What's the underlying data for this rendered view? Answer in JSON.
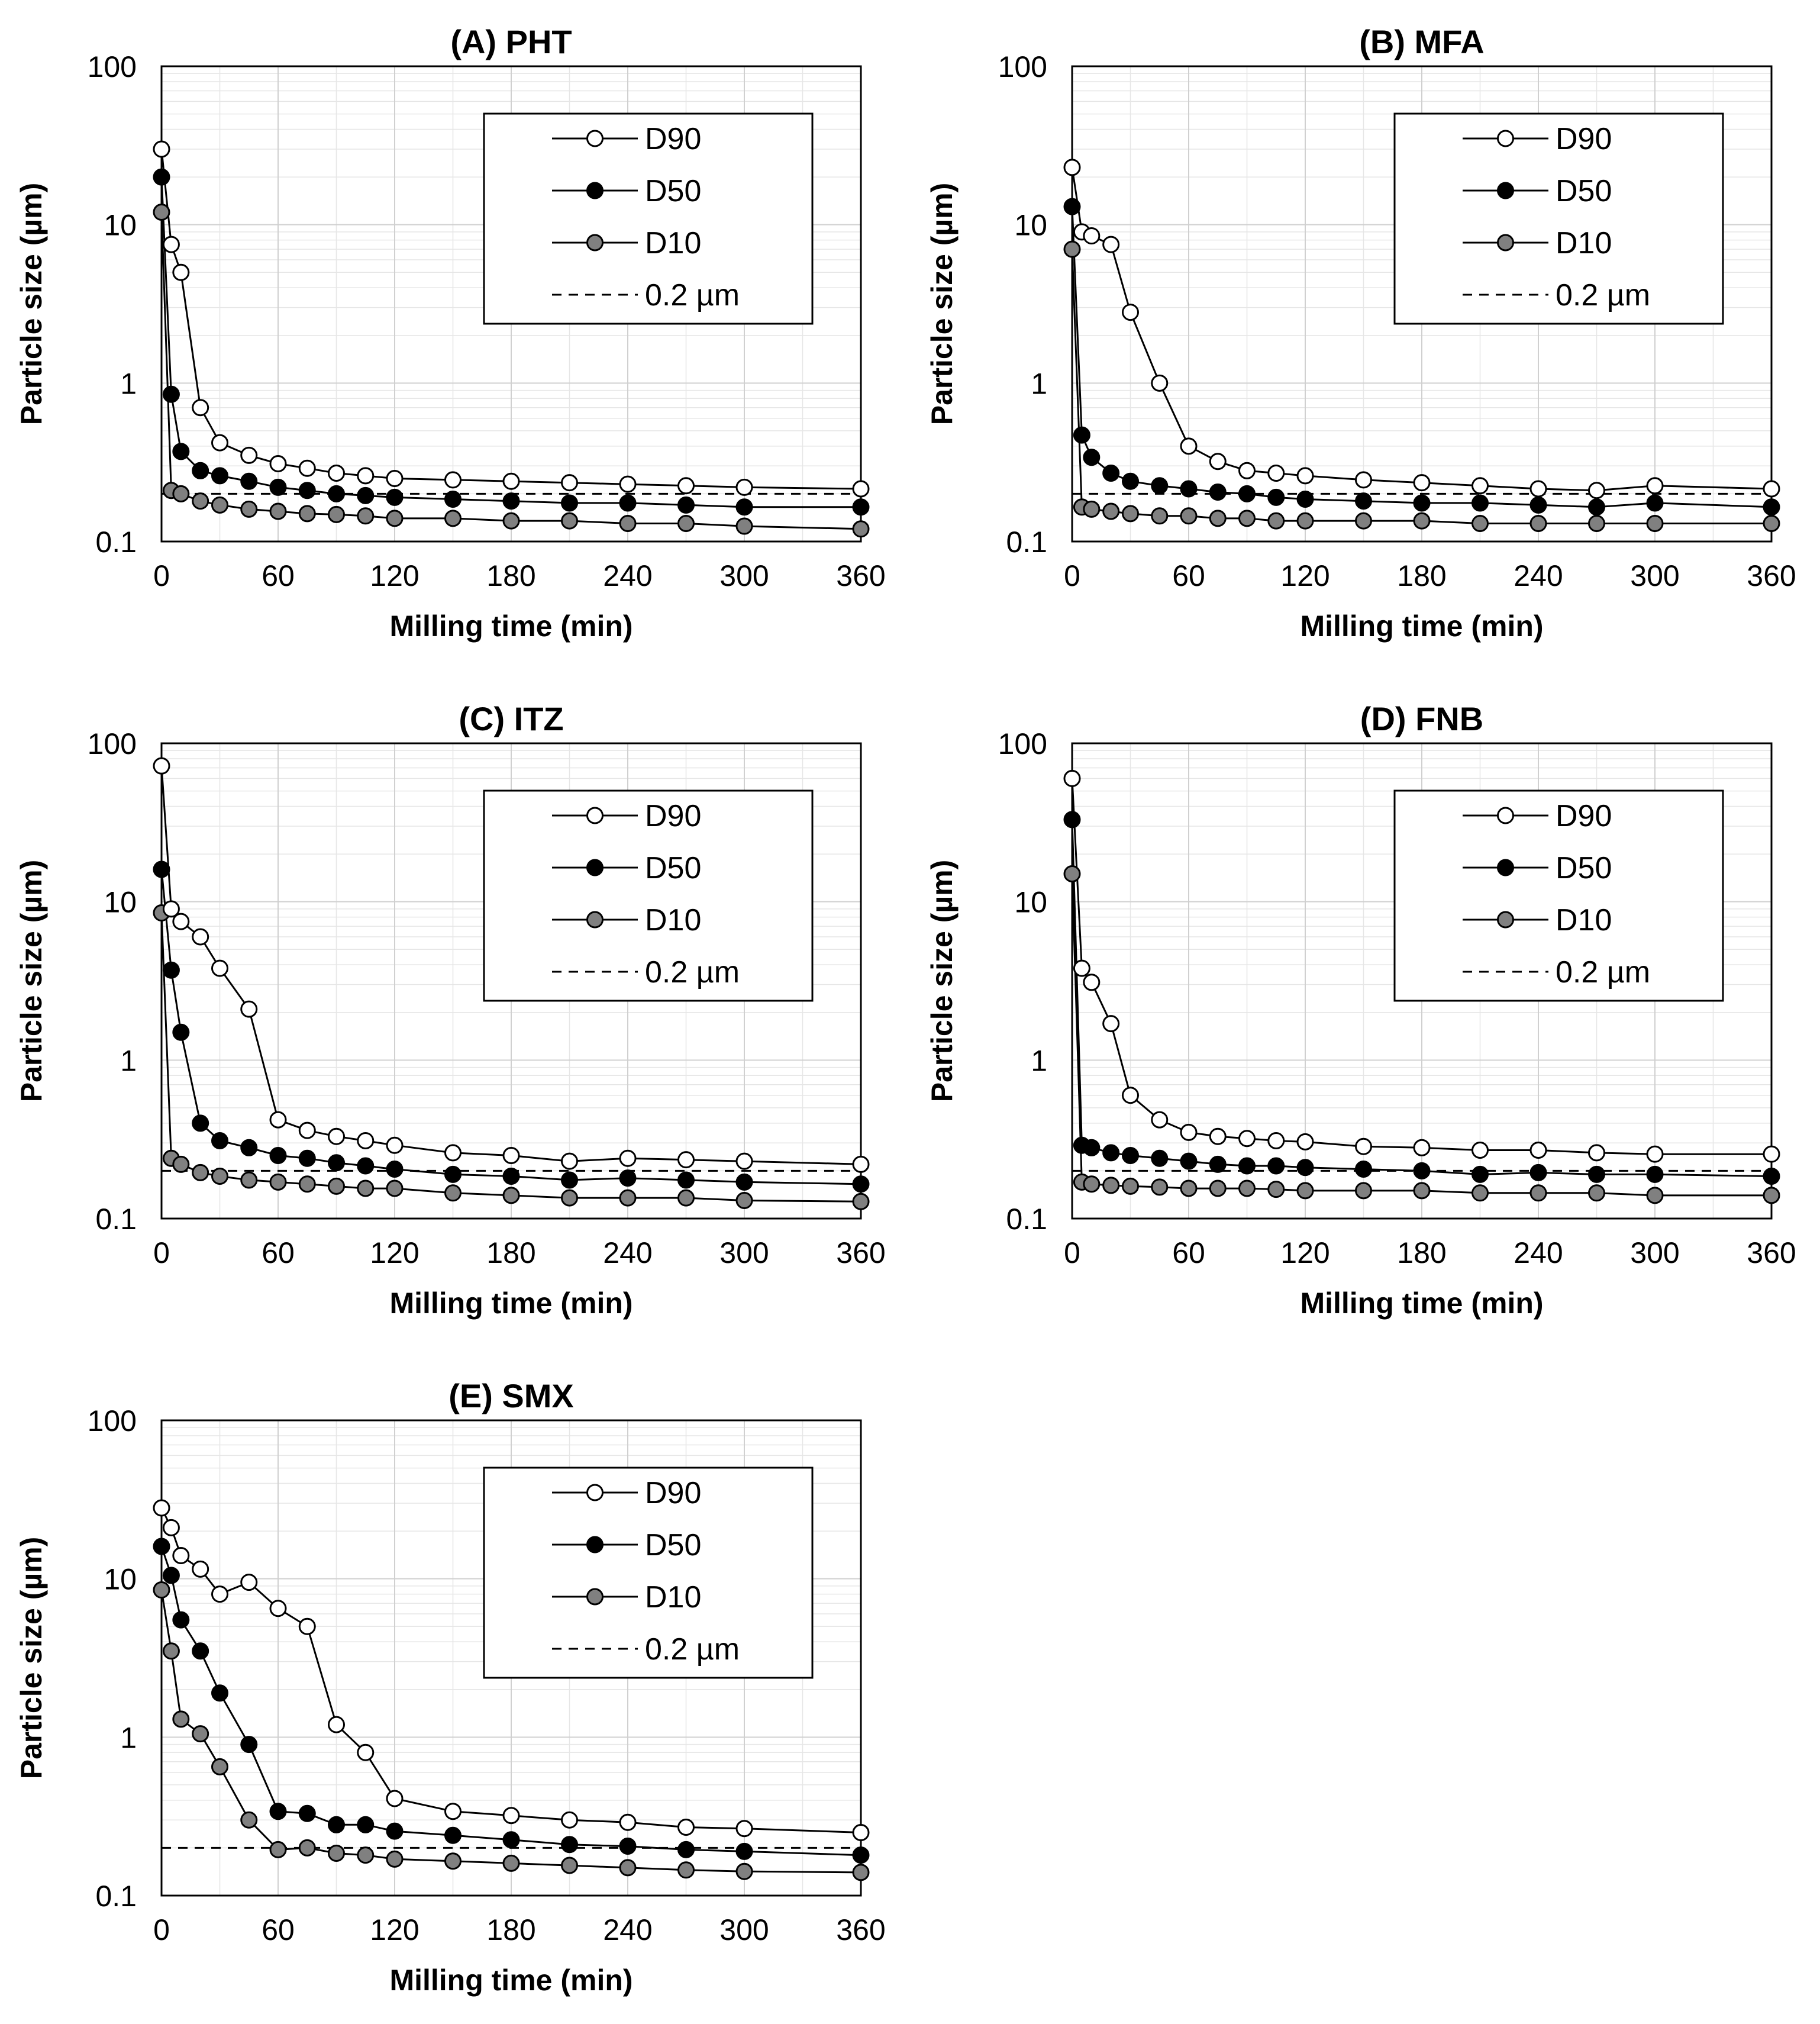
{
  "figure": {
    "legend_labels": [
      "D90",
      "D50",
      "D10",
      "0.2 µm"
    ],
    "xlabel": "Milling time (min)",
    "ylabel": "Particle size (µm)"
  },
  "colors": {
    "D90_fill": "#ffffff",
    "D50_fill": "#000000",
    "D10_fill": "#808080",
    "marker_stroke": "#000000"
  },
  "chart_data": [
    {
      "type": "line",
      "title": "(A) PHT",
      "xlabel": "Milling time (min)",
      "ylabel": "Particle size (µm)",
      "xlim": [
        0,
        360
      ],
      "xticks": [
        0,
        60,
        120,
        180,
        240,
        300,
        360
      ],
      "ylim": [
        0.1,
        100
      ],
      "yscale": "log",
      "yticks": [
        100,
        10,
        1,
        0.1
      ],
      "ytick_labels": [
        "100",
        "10",
        "1",
        "0.1"
      ],
      "legend_position": "top-right",
      "reference_line": {
        "label": "0.2 µm",
        "y": 0.2
      },
      "x": [
        0,
        5,
        10,
        20,
        30,
        45,
        60,
        75,
        90,
        105,
        120,
        150,
        180,
        210,
        240,
        270,
        300,
        360
      ],
      "series": [
        {
          "name": "D90",
          "values": [
            30,
            7.5,
            5,
            0.7,
            0.42,
            0.35,
            0.31,
            0.29,
            0.27,
            0.26,
            0.25,
            0.245,
            0.24,
            0.235,
            0.23,
            0.225,
            0.22,
            0.215
          ]
        },
        {
          "name": "D50",
          "values": [
            20,
            0.85,
            0.37,
            0.28,
            0.26,
            0.24,
            0.22,
            0.21,
            0.2,
            0.195,
            0.19,
            0.185,
            0.18,
            0.175,
            0.175,
            0.17,
            0.165,
            0.165
          ]
        },
        {
          "name": "D10",
          "values": [
            12,
            0.21,
            0.2,
            0.18,
            0.17,
            0.16,
            0.155,
            0.15,
            0.148,
            0.145,
            0.14,
            0.14,
            0.135,
            0.135,
            0.13,
            0.13,
            0.125,
            0.12
          ]
        }
      ]
    },
    {
      "type": "line",
      "title": "(B) MFA",
      "xlabel": "Milling time (min)",
      "ylabel": "Particle size (µm)",
      "xlim": [
        0,
        360
      ],
      "xticks": [
        0,
        60,
        120,
        180,
        240,
        300,
        360
      ],
      "ylim": [
        0.1,
        100
      ],
      "yscale": "log",
      "yticks": [
        100,
        10,
        1,
        0.1
      ],
      "ytick_labels": [
        "100",
        "10",
        "1",
        "0.1"
      ],
      "legend_position": "top-right",
      "reference_line": {
        "label": "0.2 µm",
        "y": 0.2
      },
      "x": [
        0,
        5,
        10,
        20,
        30,
        45,
        60,
        75,
        90,
        105,
        120,
        150,
        180,
        210,
        240,
        270,
        300,
        360
      ],
      "series": [
        {
          "name": "D90",
          "values": [
            23,
            9,
            8.5,
            7.5,
            2.8,
            1.0,
            0.4,
            0.32,
            0.28,
            0.27,
            0.26,
            0.245,
            0.235,
            0.225,
            0.215,
            0.21,
            0.225,
            0.215
          ]
        },
        {
          "name": "D50",
          "values": [
            13,
            0.47,
            0.34,
            0.27,
            0.24,
            0.225,
            0.215,
            0.205,
            0.2,
            0.19,
            0.185,
            0.18,
            0.175,
            0.175,
            0.17,
            0.165,
            0.175,
            0.165
          ]
        },
        {
          "name": "D10",
          "values": [
            7,
            0.165,
            0.16,
            0.155,
            0.15,
            0.145,
            0.145,
            0.14,
            0.14,
            0.135,
            0.135,
            0.135,
            0.135,
            0.13,
            0.13,
            0.13,
            0.13,
            0.13
          ]
        }
      ]
    },
    {
      "type": "line",
      "title": "(C) ITZ",
      "xlabel": "Milling time (min)",
      "ylabel": "Particle size (µm)",
      "xlim": [
        0,
        360
      ],
      "xticks": [
        0,
        60,
        120,
        180,
        240,
        300,
        360
      ],
      "ylim": [
        0.1,
        100
      ],
      "yscale": "log",
      "yticks": [
        100,
        10,
        1,
        0.1
      ],
      "ytick_labels": [
        "100",
        "10",
        "1",
        "0.1"
      ],
      "legend_position": "top-right",
      "reference_line": {
        "label": "0.2 µm",
        "y": 0.2
      },
      "x": [
        0,
        5,
        10,
        20,
        30,
        45,
        60,
        75,
        90,
        105,
        120,
        150,
        180,
        210,
        240,
        270,
        300,
        360
      ],
      "series": [
        {
          "name": "D90",
          "values": [
            72,
            9,
            7.5,
            6,
            3.8,
            2.1,
            0.42,
            0.36,
            0.33,
            0.31,
            0.29,
            0.26,
            0.25,
            0.23,
            0.24,
            0.235,
            0.23,
            0.22
          ]
        },
        {
          "name": "D50",
          "values": [
            16,
            3.7,
            1.5,
            0.4,
            0.31,
            0.28,
            0.25,
            0.24,
            0.225,
            0.215,
            0.205,
            0.19,
            0.185,
            0.175,
            0.18,
            0.175,
            0.17,
            0.165
          ]
        },
        {
          "name": "D10",
          "values": [
            8.5,
            0.24,
            0.22,
            0.195,
            0.185,
            0.175,
            0.17,
            0.165,
            0.16,
            0.155,
            0.155,
            0.145,
            0.14,
            0.135,
            0.135,
            0.135,
            0.13,
            0.128
          ]
        }
      ]
    },
    {
      "type": "line",
      "title": "(D) FNB",
      "xlabel": "Milling time (min)",
      "ylabel": "Particle size (µm)",
      "xlim": [
        0,
        360
      ],
      "xticks": [
        0,
        60,
        120,
        180,
        240,
        300,
        360
      ],
      "ylim": [
        0.1,
        100
      ],
      "yscale": "log",
      "yticks": [
        100,
        10,
        1,
        0.1
      ],
      "ytick_labels": [
        "100",
        "10",
        "1",
        "0.1"
      ],
      "legend_position": "top-right",
      "reference_line": {
        "label": "0.2 µm",
        "y": 0.2
      },
      "x": [
        0,
        5,
        10,
        20,
        30,
        45,
        60,
        75,
        90,
        105,
        120,
        150,
        180,
        210,
        240,
        270,
        300,
        360
      ],
      "series": [
        {
          "name": "D90",
          "values": [
            60,
            3.8,
            3.1,
            1.7,
            0.6,
            0.42,
            0.35,
            0.33,
            0.32,
            0.31,
            0.305,
            0.285,
            0.28,
            0.27,
            0.27,
            0.26,
            0.255,
            0.255
          ]
        },
        {
          "name": "D50",
          "values": [
            33,
            0.29,
            0.28,
            0.26,
            0.25,
            0.24,
            0.23,
            0.22,
            0.215,
            0.215,
            0.21,
            0.205,
            0.2,
            0.19,
            0.195,
            0.19,
            0.19,
            0.185
          ]
        },
        {
          "name": "D10",
          "values": [
            15,
            0.17,
            0.165,
            0.162,
            0.16,
            0.158,
            0.155,
            0.155,
            0.155,
            0.153,
            0.15,
            0.15,
            0.15,
            0.145,
            0.145,
            0.145,
            0.14,
            0.14
          ]
        }
      ]
    },
    {
      "type": "line",
      "title": "(E) SMX",
      "xlabel": "Milling time (min)",
      "ylabel": "Particle size (µm)",
      "xlim": [
        0,
        360
      ],
      "xticks": [
        0,
        60,
        120,
        180,
        240,
        300,
        360
      ],
      "ylim": [
        0.1,
        100
      ],
      "yscale": "log",
      "yticks": [
        100,
        10,
        1,
        0.1
      ],
      "ytick_labels": [
        "100",
        "10",
        "1",
        "0.1"
      ],
      "legend_position": "top-right",
      "reference_line": {
        "label": "0.2 µm",
        "y": 0.2
      },
      "x": [
        0,
        5,
        10,
        20,
        30,
        45,
        60,
        75,
        90,
        105,
        120,
        150,
        180,
        210,
        240,
        270,
        300,
        360
      ],
      "series": [
        {
          "name": "D90",
          "values": [
            28,
            21,
            14,
            11.5,
            8,
            9.5,
            6.5,
            5,
            1.2,
            0.8,
            0.41,
            0.34,
            0.32,
            0.3,
            0.29,
            0.27,
            0.265,
            0.25
          ]
        },
        {
          "name": "D50",
          "values": [
            16,
            10.5,
            5.5,
            3.5,
            1.9,
            0.9,
            0.34,
            0.33,
            0.28,
            0.28,
            0.255,
            0.24,
            0.225,
            0.21,
            0.205,
            0.195,
            0.19,
            0.18
          ]
        },
        {
          "name": "D10",
          "values": [
            8.5,
            3.5,
            1.3,
            1.05,
            0.65,
            0.3,
            0.195,
            0.2,
            0.185,
            0.18,
            0.17,
            0.165,
            0.16,
            0.155,
            0.15,
            0.145,
            0.142,
            0.14
          ]
        }
      ]
    }
  ]
}
